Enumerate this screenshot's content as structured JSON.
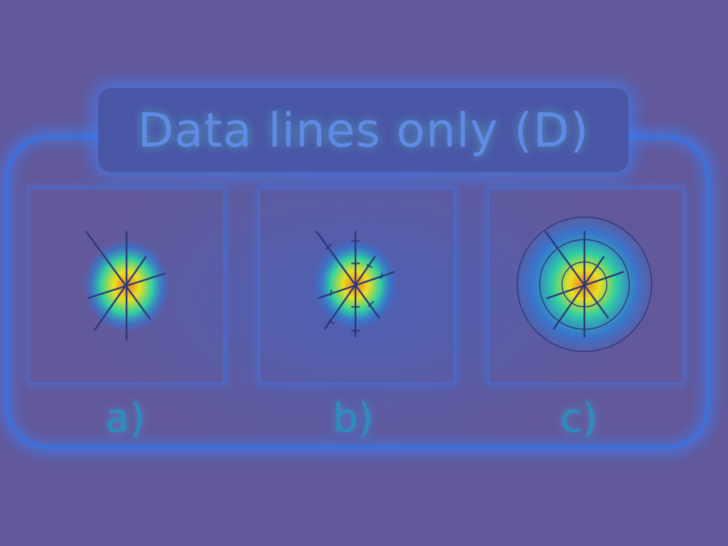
{
  "title": "Data lines only (D)",
  "panels": [
    {
      "id": "a",
      "label": "a)",
      "variant": "plain"
    },
    {
      "id": "b",
      "label": "b)",
      "variant": "ticked"
    },
    {
      "id": "c",
      "label": "c)",
      "variant": "circles"
    }
  ],
  "colors": {
    "background": "#62599a",
    "frame": "#3f6fd8",
    "glow": "#3c82ff",
    "line": "#2d3a7a",
    "hot": "#f08020",
    "warm": "#e8e020",
    "cool": "#30d0a0"
  }
}
